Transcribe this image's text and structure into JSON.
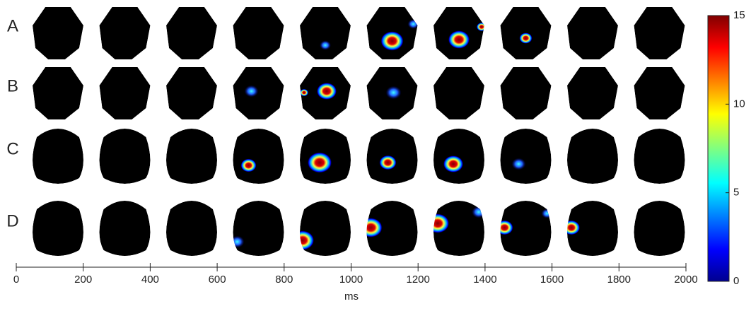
{
  "chart_data": {
    "type": "topomap-grid",
    "rows": [
      "A",
      "B",
      "C",
      "D"
    ],
    "xlabel": "ms",
    "xlim": [
      0,
      2000
    ],
    "xticks": [
      0,
      200,
      400,
      600,
      800,
      1000,
      1200,
      1400,
      1600,
      1800,
      2000
    ],
    "colorbar": {
      "lim": [
        0,
        15
      ],
      "ticks": [
        0,
        5,
        10,
        15
      ]
    }
  }
}
